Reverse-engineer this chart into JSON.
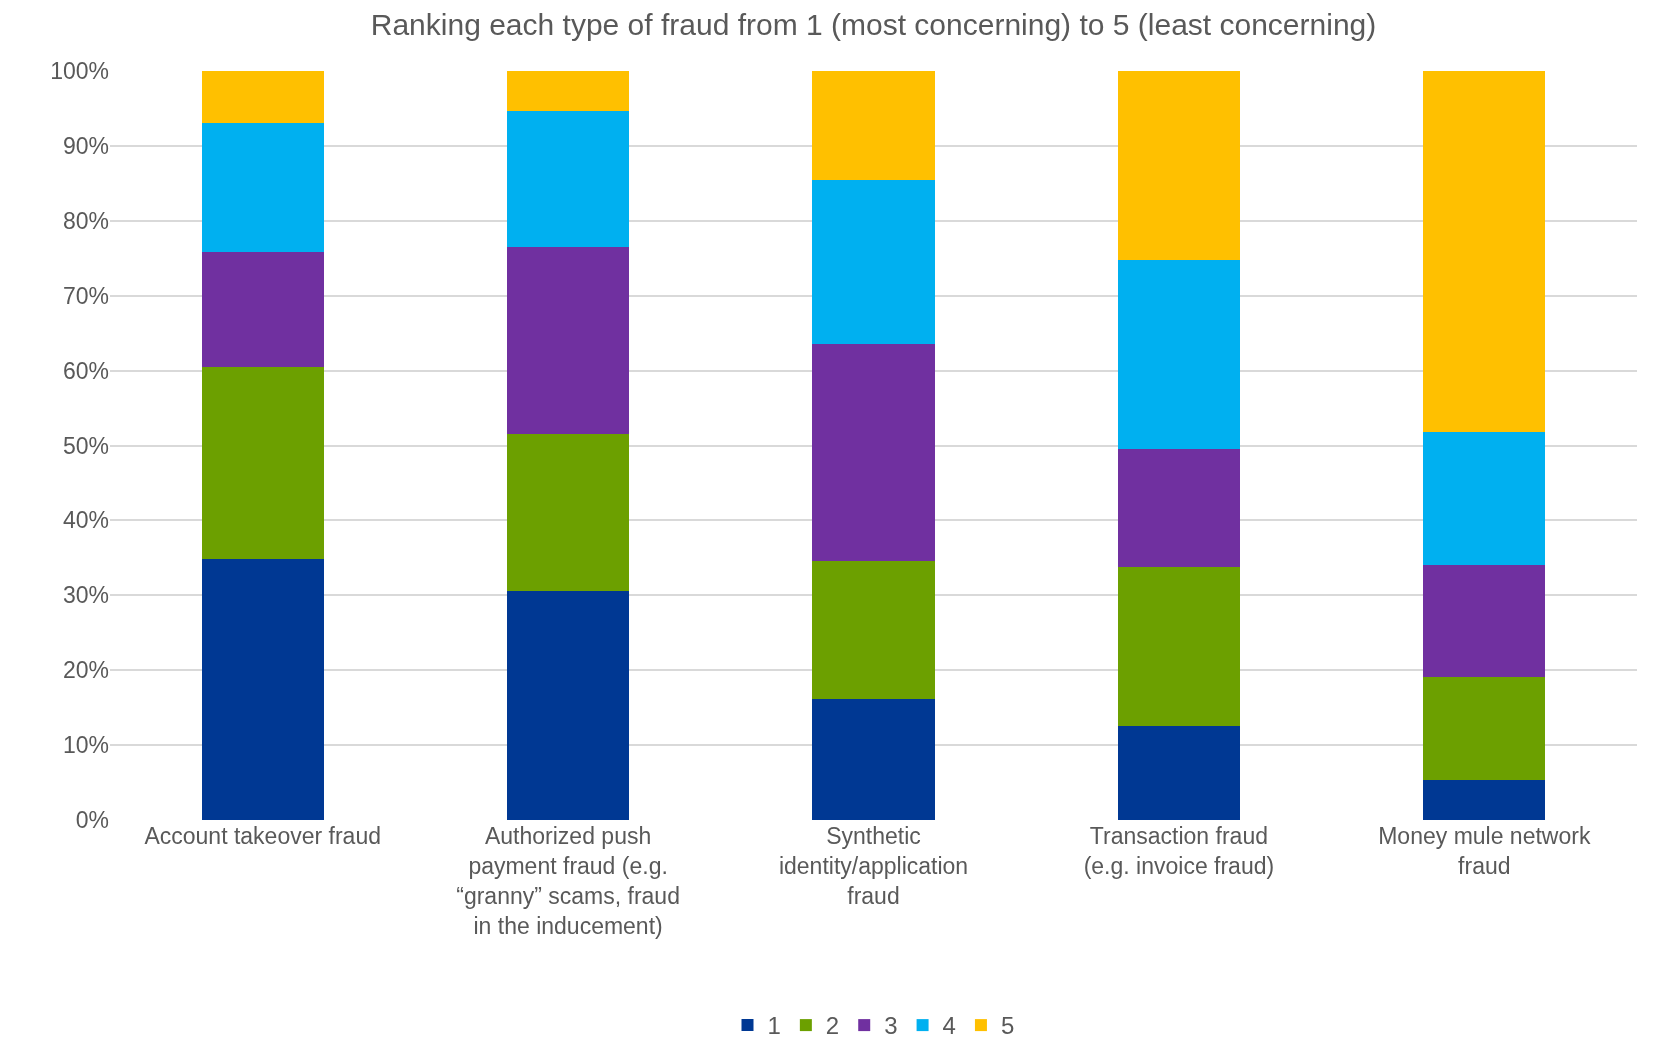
{
  "chart_data": {
    "type": "bar",
    "title": "Ranking each type of fraud from 1 (most concerning) to 5 (least concerning)",
    "categories": [
      "Account takeover fraud",
      "Authorized push payment fraud (e.g. “granny” scams, fraud in the inducement)",
      "Synthetic identity/application fraud",
      "Transaction fraud (e.g. invoice fraud)",
      "Money mule network fraud"
    ],
    "stacked": true,
    "series": [
      {
        "name": "1",
        "color": "#003893",
        "values": [
          34.8,
          30.6,
          16.2,
          12.6,
          5.3
        ]
      },
      {
        "name": "2",
        "color": "#6ca000",
        "values": [
          25.7,
          21.0,
          18.4,
          21.2,
          13.8
        ]
      },
      {
        "name": "3",
        "color": "#7030a0",
        "values": [
          15.4,
          24.9,
          29.0,
          15.8,
          14.9
        ]
      },
      {
        "name": "4",
        "color": "#00b0f0",
        "values": [
          17.1,
          18.1,
          21.8,
          25.2,
          17.8
        ]
      },
      {
        "name": "5",
        "color": "#ffc000",
        "values": [
          7.0,
          5.4,
          14.6,
          25.2,
          48.2
        ]
      }
    ],
    "ylim": [
      0,
      100
    ],
    "yticks": [
      {
        "value": 0,
        "label": "0%"
      },
      {
        "value": 10,
        "label": "10%"
      },
      {
        "value": 20,
        "label": "20%"
      },
      {
        "value": 30,
        "label": "30%"
      },
      {
        "value": 40,
        "label": "40%"
      },
      {
        "value": 50,
        "label": "50%"
      },
      {
        "value": 60,
        "label": "60%"
      },
      {
        "value": 70,
        "label": "70%"
      },
      {
        "value": 80,
        "label": "80%"
      },
      {
        "value": 90,
        "label": "90%"
      },
      {
        "value": 100,
        "label": "100%"
      }
    ],
    "grid": "y",
    "legend": "bottom"
  }
}
